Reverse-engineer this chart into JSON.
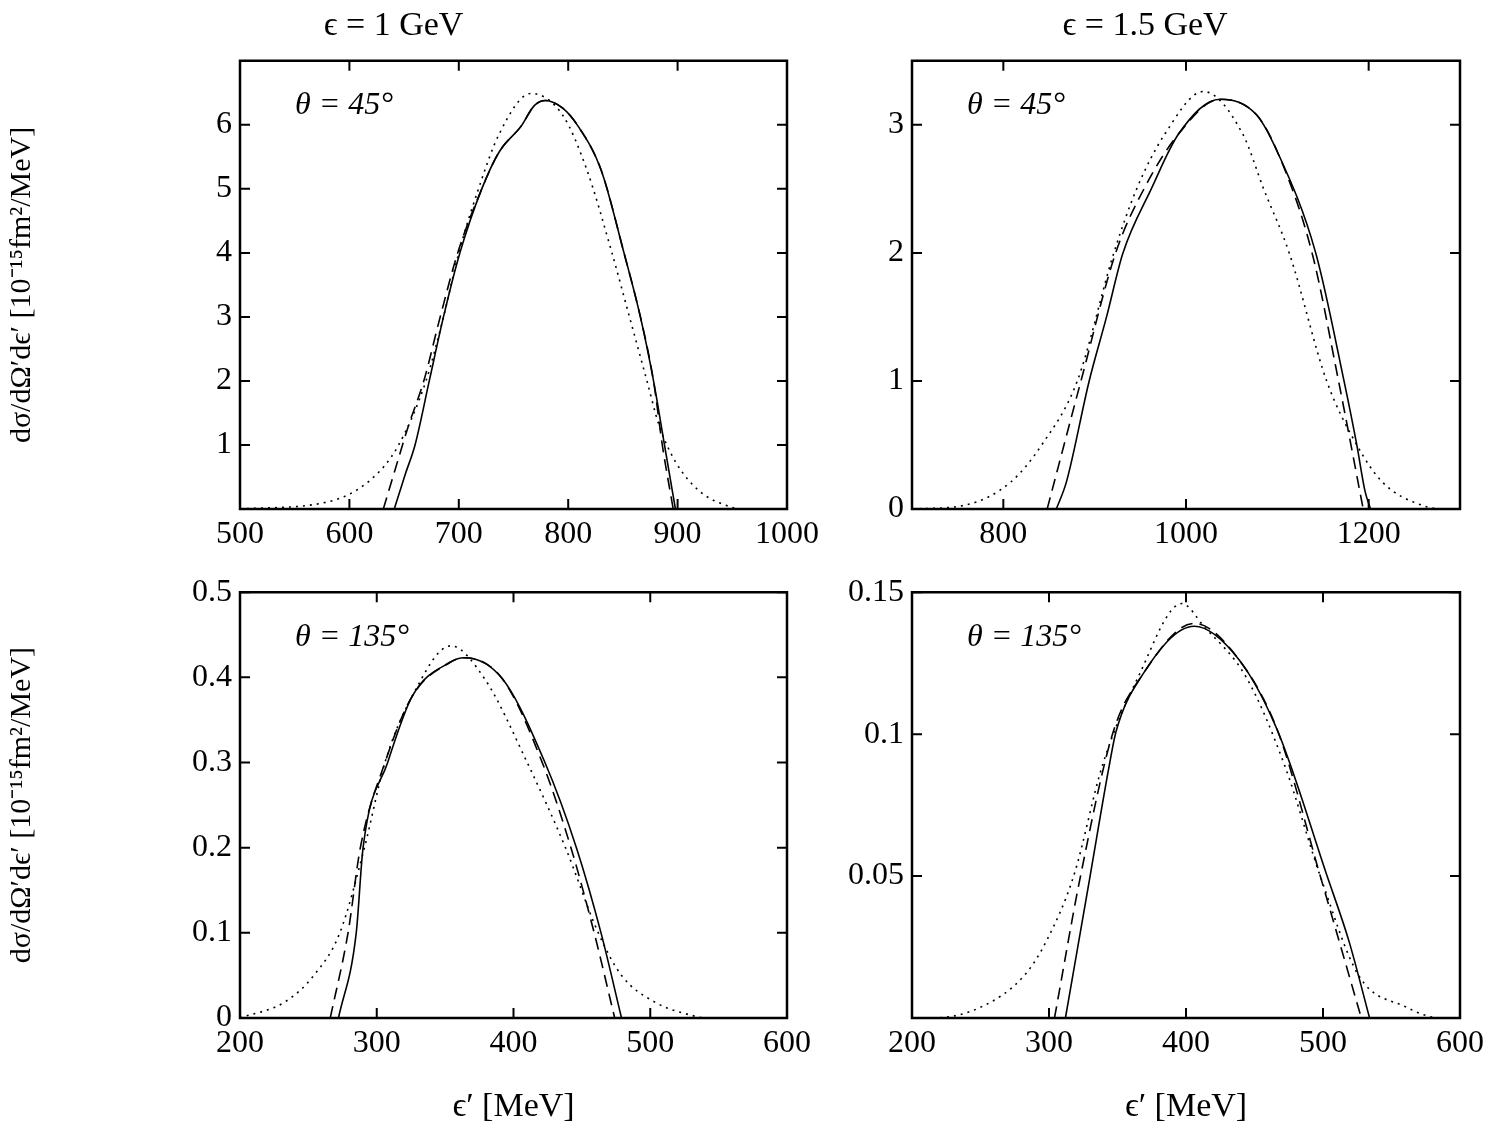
{
  "chart_data": [
    {
      "type": "line",
      "title": "ϵ = 1 GeV",
      "ylabel": "dσ/dΩ′dϵ′ [10⁻¹⁵fm²/MeV]",
      "annotations": [
        "θ = 45°"
      ],
      "xlim": [
        500,
        1000
      ],
      "xticks": [
        500,
        600,
        700,
        800,
        900,
        1000
      ],
      "ylim": [
        0,
        7
      ],
      "yticks": [
        1,
        2,
        3,
        4,
        5,
        6
      ],
      "grid": false,
      "legend": false,
      "marker": "none",
      "series": [
        {
          "color": "#000000",
          "line_style": "solid",
          "x": [
            641,
            651,
            660,
            673,
            686,
            701,
            721,
            737,
            757,
            769,
            779,
            795,
            809,
            830,
            851,
            866,
            878,
            888,
            898
          ],
          "values": [
            0,
            0.54,
            1,
            2,
            3,
            4,
            5,
            5.58,
            5.98,
            6.3,
            6.38,
            6.26,
            5.98,
            5.3,
            4,
            3,
            2,
            1,
            0
          ]
        },
        {
          "color": "#000000",
          "line_style": "dashed",
          "x": [
            631,
            641,
            654,
            668,
            683,
            699,
            721,
            737,
            757,
            769,
            779,
            795,
            809,
            830,
            851,
            866,
            878,
            886,
            896
          ],
          "values": [
            0,
            0.57,
            1.3,
            2,
            3,
            4,
            5,
            5.58,
            5.98,
            6.3,
            6.38,
            6.26,
            5.98,
            5.3,
            4,
            3,
            2,
            1,
            0
          ]
        },
        {
          "color": "#000000",
          "line_style": "dotted",
          "x": [
            500,
            580,
            619,
            644,
            670,
            686,
            700,
            718,
            737,
            766,
            795,
            817,
            840,
            856,
            872,
            883,
            898,
            920,
            949,
            960,
            1000
          ],
          "values": [
            0,
            0.11,
            0.45,
            0.97,
            2,
            3,
            4,
            5,
            5.86,
            6.49,
            6.15,
            5.3,
            4,
            3,
            2,
            1.31,
            0.74,
            0.28,
            0.03,
            0,
            0
          ]
        }
      ]
    },
    {
      "type": "line",
      "title": "ϵ = 1.5 GeV",
      "annotations": [
        "θ = 45°"
      ],
      "xlim": [
        700,
        1300
      ],
      "xticks": [
        800,
        1000,
        1200
      ],
      "ylim": [
        0,
        3.5
      ],
      "yticks": [
        0,
        1,
        2,
        3
      ],
      "grid": false,
      "legend": false,
      "marker": "none",
      "series": [
        {
          "color": "#000000",
          "line_style": "solid",
          "x": [
            858,
            869,
            894,
            913,
            931,
            962,
            992,
            1037,
            1077,
            1100,
            1142,
            1173,
            1187,
            1196,
            1202
          ],
          "values": [
            0,
            0.21,
            1,
            1.5,
            2,
            2.5,
            2.93,
            3.2,
            3.08,
            2.79,
            2,
            1,
            0.5,
            0.14,
            0
          ]
        },
        {
          "color": "#000000",
          "line_style": "dashed",
          "x": [
            848,
            885,
            923,
            954,
            992,
            1037,
            1077,
            1100,
            1138,
            1167,
            1194
          ],
          "values": [
            0,
            1,
            2,
            2.5,
            2.93,
            3.2,
            3.08,
            2.79,
            2,
            1,
            0
          ]
        },
        {
          "color": "#000000",
          "line_style": "dotted",
          "x": [
            700,
            758,
            808,
            842,
            881,
            921,
            946,
            977,
            1019,
            1062,
            1085,
            1113,
            1154,
            1187,
            1215,
            1258,
            1285,
            1300
          ],
          "values": [
            0,
            0.03,
            0.21,
            0.5,
            1,
            2,
            2.5,
            2.93,
            3.26,
            2.93,
            2.5,
            2,
            1,
            0.5,
            0.21,
            0.03,
            0,
            0
          ]
        }
      ]
    },
    {
      "type": "line",
      "xlabel": "ϵ′ [MeV]",
      "ylabel": "dσ/dΩ′dϵ′ [10⁻¹⁵fm²/MeV]",
      "annotations": [
        "θ = 135°"
      ],
      "xlim": [
        200,
        600
      ],
      "xticks": [
        200,
        300,
        400,
        500,
        600
      ],
      "ylim": [
        0,
        0.5
      ],
      "yticks": [
        0,
        0.1,
        0.2,
        0.3,
        0.4,
        0.5
      ],
      "grid": false,
      "legend": false,
      "marker": "none",
      "series": [
        {
          "color": "#000000",
          "line_style": "solid",
          "x": [
            272,
            285,
            290,
            308,
            326,
            354,
            364,
            392,
            423,
            446,
            464,
            479
          ],
          "values": [
            0,
            0.1,
            0.2,
            0.3,
            0.378,
            0.418,
            0.423,
            0.398,
            0.3,
            0.2,
            0.1,
            0
          ]
        },
        {
          "color": "#000000",
          "line_style": "dashed",
          "x": [
            266,
            279,
            288,
            306,
            326,
            354,
            364,
            392,
            421,
            442,
            459,
            474
          ],
          "values": [
            0,
            0.1,
            0.2,
            0.3,
            0.378,
            0.418,
            0.423,
            0.398,
            0.3,
            0.2,
            0.1,
            0
          ]
        },
        {
          "color": "#000000",
          "line_style": "dotted",
          "x": [
            200,
            233,
            254,
            273,
            291,
            306,
            326,
            354,
            379,
            410,
            438,
            462,
            479,
            503,
            533,
            541,
            600
          ],
          "values": [
            0,
            0.019,
            0.05,
            0.1,
            0.2,
            0.3,
            0.378,
            0.437,
            0.398,
            0.3,
            0.2,
            0.1,
            0.05,
            0.019,
            0.002,
            0,
            0
          ]
        }
      ]
    },
    {
      "type": "line",
      "xlabel": "ϵ′ [MeV]",
      "annotations": [
        "θ = 135°"
      ],
      "xlim": [
        200,
        600
      ],
      "xticks": [
        200,
        300,
        400,
        500,
        600
      ],
      "ylim": [
        0,
        0.15
      ],
      "yticks": [
        0.05,
        0.1,
        0.15
      ],
      "grid": false,
      "legend": false,
      "marker": "none",
      "series": [
        {
          "color": "#000000",
          "line_style": "solid",
          "x": [
            312,
            330,
            344,
            349,
            367,
            406,
            439,
            467,
            503,
            519,
            534
          ],
          "values": [
            0,
            0.05,
            0.089,
            0.101,
            0.12,
            0.138,
            0.126,
            0.101,
            0.05,
            0.027,
            0
          ]
        },
        {
          "color": "#000000",
          "line_style": "dashed",
          "x": [
            304,
            323,
            347,
            367,
            406,
            439,
            467,
            498,
            528
          ],
          "values": [
            0,
            0.05,
            0.101,
            0.12,
            0.139,
            0.126,
            0.101,
            0.05,
            0
          ]
        },
        {
          "color": "#000000",
          "line_style": "dotted",
          "x": [
            200,
            215,
            251,
            282,
            298,
            318,
            339,
            365,
            397,
            413,
            444,
            472,
            498,
            526,
            560,
            586,
            600
          ],
          "values": [
            0,
            0,
            0.004,
            0.015,
            0.027,
            0.05,
            0.089,
            0.12,
            0.146,
            0.138,
            0.12,
            0.089,
            0.05,
            0.015,
            0.004,
            0,
            0
          ]
        }
      ]
    }
  ]
}
